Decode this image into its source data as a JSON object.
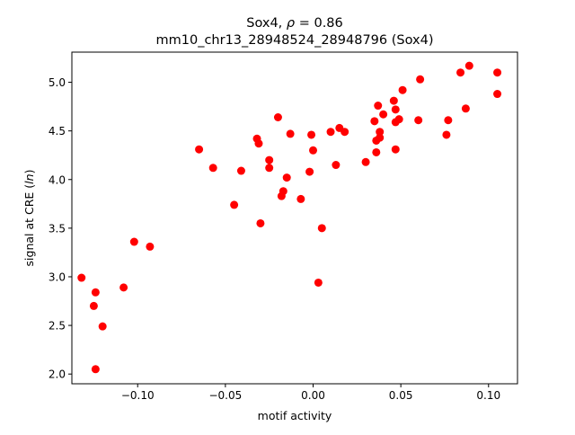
{
  "chart_data": {
    "type": "scatter",
    "title_prefix": "Sox4, ",
    "title_rho": "ρ",
    "title_suffix": " = 0.86",
    "subtitle": "mm10_chr13_28948524_28948796 (Sox4)",
    "xlabel": "motif activity",
    "ylabel_prefix": "signal at CRE (",
    "ylabel_italic": "ln",
    "ylabel_suffix": ")",
    "xlim": [
      -0.1375,
      0.1165
    ],
    "ylim": [
      1.9,
      5.31
    ],
    "x_ticks": [
      {
        "value": -0.1,
        "label": "−0.10"
      },
      {
        "value": -0.05,
        "label": "−0.05"
      },
      {
        "value": 0.0,
        "label": "0.00"
      },
      {
        "value": 0.05,
        "label": "0.05"
      },
      {
        "value": 0.1,
        "label": "0.10"
      }
    ],
    "y_ticks": [
      {
        "value": 2.0,
        "label": "2.0"
      },
      {
        "value": 2.5,
        "label": "2.5"
      },
      {
        "value": 3.0,
        "label": "3.0"
      },
      {
        "value": 3.5,
        "label": "3.5"
      },
      {
        "value": 4.0,
        "label": "4.0"
      },
      {
        "value": 4.5,
        "label": "4.5"
      },
      {
        "value": 5.0,
        "label": "5.0"
      }
    ],
    "grid": false,
    "marker_color": "#ff0000",
    "points": [
      {
        "x": -0.132,
        "y": 2.99
      },
      {
        "x": -0.125,
        "y": 2.7
      },
      {
        "x": -0.124,
        "y": 2.84
      },
      {
        "x": -0.124,
        "y": 2.05
      },
      {
        "x": -0.12,
        "y": 2.49
      },
      {
        "x": -0.108,
        "y": 2.89
      },
      {
        "x": -0.102,
        "y": 3.36
      },
      {
        "x": -0.093,
        "y": 3.31
      },
      {
        "x": -0.065,
        "y": 4.31
      },
      {
        "x": -0.057,
        "y": 4.12
      },
      {
        "x": -0.045,
        "y": 3.74
      },
      {
        "x": -0.041,
        "y": 4.09
      },
      {
        "x": -0.032,
        "y": 4.42
      },
      {
        "x": -0.031,
        "y": 4.37
      },
      {
        "x": -0.03,
        "y": 3.55
      },
      {
        "x": -0.025,
        "y": 4.2
      },
      {
        "x": -0.025,
        "y": 4.12
      },
      {
        "x": -0.02,
        "y": 4.64
      },
      {
        "x": -0.018,
        "y": 3.83
      },
      {
        "x": -0.017,
        "y": 3.88
      },
      {
        "x": -0.015,
        "y": 4.02
      },
      {
        "x": -0.013,
        "y": 4.47
      },
      {
        "x": -0.007,
        "y": 3.8
      },
      {
        "x": -0.002,
        "y": 4.08
      },
      {
        "x": -0.001,
        "y": 4.46
      },
      {
        "x": 0.0,
        "y": 4.3
      },
      {
        "x": 0.003,
        "y": 2.94
      },
      {
        "x": 0.005,
        "y": 3.5
      },
      {
        "x": 0.01,
        "y": 4.49
      },
      {
        "x": 0.013,
        "y": 4.15
      },
      {
        "x": 0.015,
        "y": 4.53
      },
      {
        "x": 0.018,
        "y": 4.49
      },
      {
        "x": 0.03,
        "y": 4.18
      },
      {
        "x": 0.035,
        "y": 4.6
      },
      {
        "x": 0.036,
        "y": 4.4
      },
      {
        "x": 0.036,
        "y": 4.28
      },
      {
        "x": 0.037,
        "y": 4.76
      },
      {
        "x": 0.038,
        "y": 4.43
      },
      {
        "x": 0.038,
        "y": 4.49
      },
      {
        "x": 0.04,
        "y": 4.67
      },
      {
        "x": 0.046,
        "y": 4.81
      },
      {
        "x": 0.047,
        "y": 4.72
      },
      {
        "x": 0.047,
        "y": 4.59
      },
      {
        "x": 0.047,
        "y": 4.31
      },
      {
        "x": 0.049,
        "y": 4.62
      },
      {
        "x": 0.051,
        "y": 4.92
      },
      {
        "x": 0.06,
        "y": 4.61
      },
      {
        "x": 0.061,
        "y": 5.03
      },
      {
        "x": 0.076,
        "y": 4.46
      },
      {
        "x": 0.077,
        "y": 4.61
      },
      {
        "x": 0.084,
        "y": 5.1
      },
      {
        "x": 0.087,
        "y": 4.73
      },
      {
        "x": 0.089,
        "y": 5.17
      },
      {
        "x": 0.105,
        "y": 4.88
      },
      {
        "x": 0.105,
        "y": 5.1
      }
    ]
  }
}
